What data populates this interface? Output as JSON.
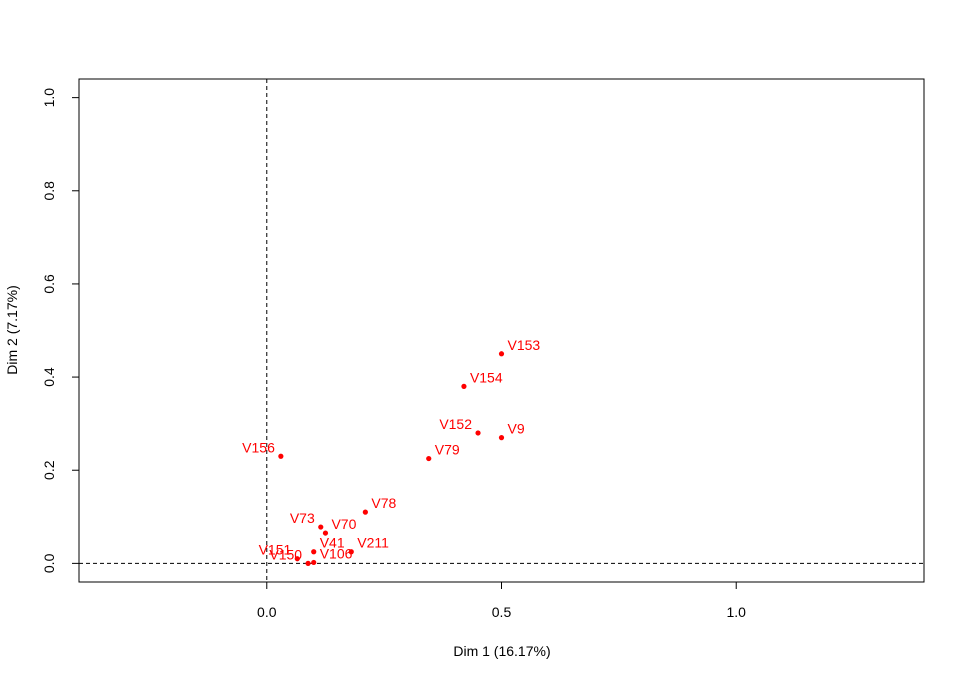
{
  "chart_data": {
    "type": "scatter",
    "title": "",
    "xlabel": "Dim 1 (16.17%)",
    "ylabel": "Dim 2 (7.17%)",
    "xlim": [
      -0.4,
      1.4
    ],
    "ylim": [
      -0.04,
      1.04
    ],
    "xticks": [
      0.0,
      0.5,
      1.0
    ],
    "xtick_labels": [
      "0.0",
      "0.5",
      "1.0"
    ],
    "yticks": [
      0.0,
      0.2,
      0.4,
      0.6,
      0.8,
      1.0
    ],
    "ytick_labels": [
      "0.0",
      "0.2",
      "0.4",
      "0.6",
      "0.8",
      "1.0"
    ],
    "reference_lines": {
      "x": 0,
      "y": 0,
      "style": "dashed"
    },
    "grid": false,
    "point_color": "#ff0000",
    "points": [
      {
        "label": "V153",
        "x": 0.5,
        "y": 0.45,
        "anchor": "start"
      },
      {
        "label": "V154",
        "x": 0.42,
        "y": 0.38,
        "anchor": "start"
      },
      {
        "label": "V152",
        "x": 0.45,
        "y": 0.28,
        "anchor": "end"
      },
      {
        "label": "V9",
        "x": 0.5,
        "y": 0.27,
        "anchor": "start"
      },
      {
        "label": "V79",
        "x": 0.345,
        "y": 0.225,
        "anchor": "start"
      },
      {
        "label": "V156",
        "x": 0.03,
        "y": 0.23,
        "anchor": "end"
      },
      {
        "label": "V78",
        "x": 0.21,
        "y": 0.11,
        "anchor": "start"
      },
      {
        "label": "V70",
        "x": 0.125,
        "y": 0.065,
        "anchor": "start"
      },
      {
        "label": "V73",
        "x": 0.115,
        "y": 0.078,
        "anchor": "end"
      },
      {
        "label": "V211",
        "x": 0.18,
        "y": 0.025,
        "anchor": "start"
      },
      {
        "label": "V41",
        "x": 0.1,
        "y": 0.025,
        "anchor": "start"
      },
      {
        "label": "V151",
        "x": 0.065,
        "y": 0.01,
        "anchor": "end"
      },
      {
        "label": "V106",
        "x": 0.1,
        "y": 0.002,
        "anchor": "start"
      },
      {
        "label": "V150",
        "x": 0.088,
        "y": 0.0,
        "anchor": "end"
      }
    ]
  }
}
